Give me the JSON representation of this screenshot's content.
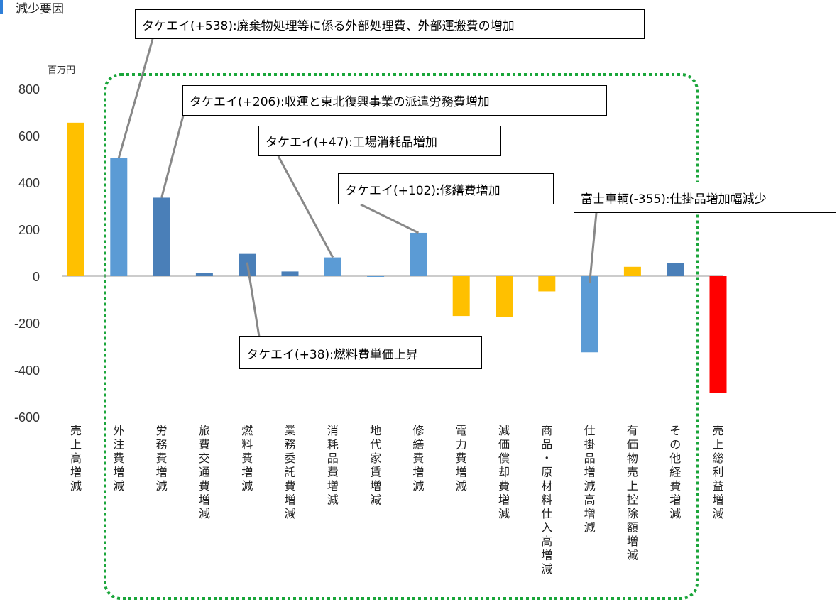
{
  "tag": {
    "label": "減少要因"
  },
  "callouts": [
    {
      "text": "タケエイ(+538):廃棄物処理等に係る外部処理費、外部運搬費の増加"
    },
    {
      "text": "タケエイ(+206):収運と東北復興事業の派遣労務費増加"
    },
    {
      "text": "タケエイ(+47):工場消耗品増加"
    },
    {
      "text": "タケエイ(+102):修繕費増加"
    },
    {
      "text": "富士車輌(-355):仕掛品増加幅減少"
    },
    {
      "text": "タケエイ(+38):燃料費単価上昇"
    }
  ],
  "colors": {
    "sales": "#FFC000",
    "cost": "#5B9BD5",
    "cost_dark": "#4A7FB8",
    "orange": "#FFC000",
    "red": "#FF0000",
    "highlight_border": "#1AA53A"
  },
  "chart_data": {
    "type": "bar",
    "unit_label": "百万円",
    "ylim": [
      -600,
      800
    ],
    "yticks": [
      800,
      600,
      400,
      200,
      0,
      -200,
      -400,
      -600
    ],
    "categories": [
      "売上高増減",
      "外注費増減",
      "労務費増減",
      "旅費交通費増減",
      "燃料費増減",
      "業務委託費増減",
      "消耗品費増減",
      "地代家賃増減",
      "修繕費増減",
      "電力費増減",
      "減価償却費増減",
      "商品・原材料仕入高増減",
      "仕掛品増減高増減",
      "有価物売上控除額増減",
      "その他経費増減",
      "売上総利益増減"
    ],
    "values": [
      655,
      505,
      335,
      15,
      95,
      20,
      80,
      0,
      185,
      -170,
      -175,
      -65,
      -325,
      40,
      55,
      -500
    ],
    "bar_colors": [
      "#FFC000",
      "#5B9BD5",
      "#4A7FB8",
      "#4A7FB8",
      "#4A7FB8",
      "#4A7FB8",
      "#5B9BD5",
      "#5B9BD5",
      "#5B9BD5",
      "#FFC000",
      "#FFC000",
      "#FFC000",
      "#5B9BD5",
      "#FFC000",
      "#4A7FB8",
      "#FF0000"
    ],
    "grid": false,
    "legend": "none"
  }
}
